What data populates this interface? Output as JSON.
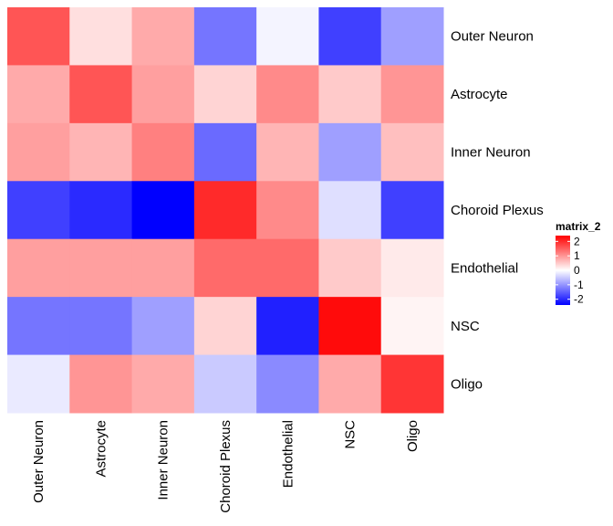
{
  "chart_data": {
    "type": "heatmap",
    "rows": [
      "Outer Neuron",
      "Astrocyte",
      "Inner Neuron",
      "Choroid Plexus",
      "Endothelial",
      "NSC",
      "Oligo"
    ],
    "columns": [
      "Outer Neuron",
      "Astrocyte",
      "Inner Neuron",
      "Choroid Plexus",
      "Endothelial",
      "NSC",
      "Oligo"
    ],
    "values": [
      [
        1.6,
        0.3,
        0.8,
        -1.3,
        -0.1,
        -1.8,
        -0.9
      ],
      [
        0.8,
        1.6,
        0.9,
        0.4,
        1.1,
        0.5,
        1.0
      ],
      [
        0.9,
        0.7,
        1.2,
        -1.4,
        0.7,
        -0.9,
        0.6
      ],
      [
        -1.8,
        -2.0,
        -2.4,
        2.0,
        1.1,
        -0.3,
        -1.8
      ],
      [
        0.9,
        0.9,
        0.9,
        1.4,
        1.4,
        0.5,
        0.2
      ],
      [
        -1.3,
        -1.3,
        -0.9,
        0.4,
        -2.1,
        2.3,
        0.1
      ],
      [
        -0.2,
        1.0,
        0.8,
        -0.5,
        -1.1,
        0.8,
        1.9
      ]
    ],
    "legend": {
      "title": "matrix_2",
      "ticks": [
        2,
        1,
        0,
        -1,
        -2
      ],
      "tick_labels": [
        "2",
        "1",
        "0",
        "-1",
        "-2"
      ],
      "range": [
        -2.4,
        2.4
      ]
    },
    "colors": {
      "low": "#0000ff",
      "mid": "#ffffff",
      "high": "#ff0000"
    }
  }
}
